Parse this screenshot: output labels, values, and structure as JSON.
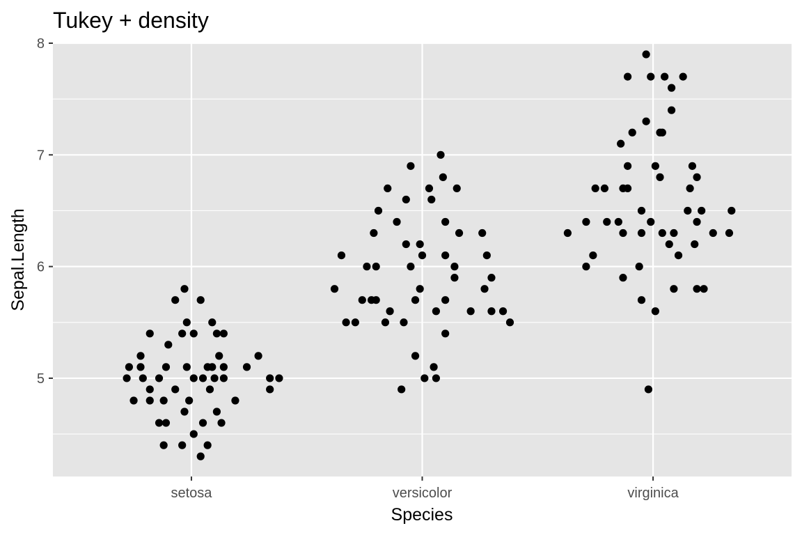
{
  "chart_data": {
    "type": "scatter",
    "title": "Tukey + density",
    "xlabel": "Species",
    "ylabel": "Sepal.Length",
    "categories": [
      "setosa",
      "versicolor",
      "virginica"
    ],
    "ylim": [
      4.12,
      8.0
    ],
    "y_ticks": [
      5,
      6,
      7,
      8
    ],
    "y_tick_labels": [
      "5",
      "6",
      "7",
      "8"
    ],
    "grid": true,
    "colors": {
      "panel": "#e5e5e5",
      "grid": "#ffffff",
      "point": "#000000",
      "tick_label": "#4d4d4d",
      "tick": "#333333"
    },
    "points": [
      {
        "species": "setosa",
        "jitter": -0.28,
        "y": 5.0
      },
      {
        "species": "setosa",
        "jitter": -0.27,
        "y": 5.1
      },
      {
        "species": "setosa",
        "jitter": -0.25,
        "y": 4.8
      },
      {
        "species": "setosa",
        "jitter": -0.22,
        "y": 5.2
      },
      {
        "species": "setosa",
        "jitter": -0.22,
        "y": 5.1
      },
      {
        "species": "setosa",
        "jitter": -0.21,
        "y": 5.0
      },
      {
        "species": "setosa",
        "jitter": -0.18,
        "y": 4.9
      },
      {
        "species": "setosa",
        "jitter": -0.18,
        "y": 4.8
      },
      {
        "species": "setosa",
        "jitter": -0.18,
        "y": 5.4
      },
      {
        "species": "setosa",
        "jitter": -0.14,
        "y": 4.6
      },
      {
        "species": "setosa",
        "jitter": -0.14,
        "y": 5.0
      },
      {
        "species": "setosa",
        "jitter": -0.12,
        "y": 4.8
      },
      {
        "species": "setosa",
        "jitter": -0.12,
        "y": 4.4
      },
      {
        "species": "setosa",
        "jitter": -0.11,
        "y": 4.6
      },
      {
        "species": "setosa",
        "jitter": -0.11,
        "y": 5.1
      },
      {
        "species": "setosa",
        "jitter": -0.1,
        "y": 5.3
      },
      {
        "species": "setosa",
        "jitter": -0.07,
        "y": 4.9
      },
      {
        "species": "setosa",
        "jitter": -0.07,
        "y": 5.7
      },
      {
        "species": "setosa",
        "jitter": -0.04,
        "y": 5.4
      },
      {
        "species": "setosa",
        "jitter": -0.04,
        "y": 4.4
      },
      {
        "species": "setosa",
        "jitter": -0.03,
        "y": 5.8
      },
      {
        "species": "setosa",
        "jitter": -0.03,
        "y": 4.7
      },
      {
        "species": "setosa",
        "jitter": -0.02,
        "y": 5.5
      },
      {
        "species": "setosa",
        "jitter": -0.02,
        "y": 5.1
      },
      {
        "species": "setosa",
        "jitter": -0.01,
        "y": 4.8
      },
      {
        "species": "setosa",
        "jitter": 0.01,
        "y": 4.5
      },
      {
        "species": "setosa",
        "jitter": 0.01,
        "y": 5.0
      },
      {
        "species": "setosa",
        "jitter": 0.01,
        "y": 5.4
      },
      {
        "species": "setosa",
        "jitter": 0.04,
        "y": 4.3
      },
      {
        "species": "setosa",
        "jitter": 0.04,
        "y": 5.7
      },
      {
        "species": "setosa",
        "jitter": 0.05,
        "y": 4.6
      },
      {
        "species": "setosa",
        "jitter": 0.05,
        "y": 5.0
      },
      {
        "species": "setosa",
        "jitter": 0.07,
        "y": 4.4
      },
      {
        "species": "setosa",
        "jitter": 0.07,
        "y": 5.1
      },
      {
        "species": "setosa",
        "jitter": 0.08,
        "y": 4.9
      },
      {
        "species": "setosa",
        "jitter": 0.09,
        "y": 5.5
      },
      {
        "species": "setosa",
        "jitter": 0.09,
        "y": 5.1
      },
      {
        "species": "setosa",
        "jitter": 0.1,
        "y": 5.0
      },
      {
        "species": "setosa",
        "jitter": 0.11,
        "y": 5.4
      },
      {
        "species": "setosa",
        "jitter": 0.11,
        "y": 4.7
      },
      {
        "species": "setosa",
        "jitter": 0.12,
        "y": 5.2
      },
      {
        "species": "setosa",
        "jitter": 0.13,
        "y": 4.6
      },
      {
        "species": "setosa",
        "jitter": 0.14,
        "y": 5.4
      },
      {
        "species": "setosa",
        "jitter": 0.14,
        "y": 5.1
      },
      {
        "species": "setosa",
        "jitter": 0.14,
        "y": 5.0
      },
      {
        "species": "setosa",
        "jitter": 0.19,
        "y": 4.8
      },
      {
        "species": "setosa",
        "jitter": 0.24,
        "y": 5.1
      },
      {
        "species": "setosa",
        "jitter": 0.29,
        "y": 5.2
      },
      {
        "species": "setosa",
        "jitter": 0.34,
        "y": 5.0
      },
      {
        "species": "setosa",
        "jitter": 0.34,
        "y": 4.9
      },
      {
        "species": "setosa",
        "jitter": 0.38,
        "y": 5.0
      },
      {
        "species": "versicolor",
        "jitter": -0.38,
        "y": 5.8
      },
      {
        "species": "versicolor",
        "jitter": -0.35,
        "y": 6.1
      },
      {
        "species": "versicolor",
        "jitter": -0.33,
        "y": 5.5
      },
      {
        "species": "versicolor",
        "jitter": -0.29,
        "y": 5.5
      },
      {
        "species": "versicolor",
        "jitter": -0.26,
        "y": 5.7
      },
      {
        "species": "versicolor",
        "jitter": -0.24,
        "y": 6.0
      },
      {
        "species": "versicolor",
        "jitter": -0.22,
        "y": 5.7
      },
      {
        "species": "versicolor",
        "jitter": -0.21,
        "y": 6.3
      },
      {
        "species": "versicolor",
        "jitter": -0.2,
        "y": 6.0
      },
      {
        "species": "versicolor",
        "jitter": -0.2,
        "y": 5.7
      },
      {
        "species": "versicolor",
        "jitter": -0.19,
        "y": 6.5
      },
      {
        "species": "versicolor",
        "jitter": -0.16,
        "y": 5.5
      },
      {
        "species": "versicolor",
        "jitter": -0.15,
        "y": 6.7
      },
      {
        "species": "versicolor",
        "jitter": -0.14,
        "y": 5.6
      },
      {
        "species": "versicolor",
        "jitter": -0.11,
        "y": 6.4
      },
      {
        "species": "versicolor",
        "jitter": -0.09,
        "y": 4.9
      },
      {
        "species": "versicolor",
        "jitter": -0.08,
        "y": 5.5
      },
      {
        "species": "versicolor",
        "jitter": -0.07,
        "y": 6.2
      },
      {
        "species": "versicolor",
        "jitter": -0.07,
        "y": 6.6
      },
      {
        "species": "versicolor",
        "jitter": -0.05,
        "y": 6.9
      },
      {
        "species": "versicolor",
        "jitter": -0.05,
        "y": 6.0
      },
      {
        "species": "versicolor",
        "jitter": -0.03,
        "y": 5.2
      },
      {
        "species": "versicolor",
        "jitter": -0.03,
        "y": 5.7
      },
      {
        "species": "versicolor",
        "jitter": -0.01,
        "y": 6.2
      },
      {
        "species": "versicolor",
        "jitter": -0.01,
        "y": 5.8
      },
      {
        "species": "versicolor",
        "jitter": 0.0,
        "y": 6.1
      },
      {
        "species": "versicolor",
        "jitter": 0.01,
        "y": 5.0
      },
      {
        "species": "versicolor",
        "jitter": 0.03,
        "y": 6.7
      },
      {
        "species": "versicolor",
        "jitter": 0.04,
        "y": 6.6
      },
      {
        "species": "versicolor",
        "jitter": 0.05,
        "y": 5.1
      },
      {
        "species": "versicolor",
        "jitter": 0.06,
        "y": 5.6
      },
      {
        "species": "versicolor",
        "jitter": 0.06,
        "y": 5.0
      },
      {
        "species": "versicolor",
        "jitter": 0.08,
        "y": 7.0
      },
      {
        "species": "versicolor",
        "jitter": 0.09,
        "y": 6.8
      },
      {
        "species": "versicolor",
        "jitter": 0.1,
        "y": 6.4
      },
      {
        "species": "versicolor",
        "jitter": 0.1,
        "y": 5.7
      },
      {
        "species": "versicolor",
        "jitter": 0.1,
        "y": 5.4
      },
      {
        "species": "versicolor",
        "jitter": 0.1,
        "y": 6.1
      },
      {
        "species": "versicolor",
        "jitter": 0.14,
        "y": 6.0
      },
      {
        "species": "versicolor",
        "jitter": 0.14,
        "y": 5.9
      },
      {
        "species": "versicolor",
        "jitter": 0.15,
        "y": 6.7
      },
      {
        "species": "versicolor",
        "jitter": 0.16,
        "y": 6.3
      },
      {
        "species": "versicolor",
        "jitter": 0.21,
        "y": 5.6
      },
      {
        "species": "versicolor",
        "jitter": 0.26,
        "y": 6.3
      },
      {
        "species": "versicolor",
        "jitter": 0.27,
        "y": 5.8
      },
      {
        "species": "versicolor",
        "jitter": 0.28,
        "y": 6.1
      },
      {
        "species": "versicolor",
        "jitter": 0.3,
        "y": 5.9
      },
      {
        "species": "versicolor",
        "jitter": 0.3,
        "y": 5.6
      },
      {
        "species": "versicolor",
        "jitter": 0.35,
        "y": 5.6
      },
      {
        "species": "versicolor",
        "jitter": 0.38,
        "y": 5.5
      },
      {
        "species": "virginica",
        "jitter": -0.37,
        "y": 6.3
      },
      {
        "species": "virginica",
        "jitter": -0.29,
        "y": 6.0
      },
      {
        "species": "virginica",
        "jitter": -0.29,
        "y": 6.4
      },
      {
        "species": "virginica",
        "jitter": -0.26,
        "y": 6.1
      },
      {
        "species": "virginica",
        "jitter": -0.25,
        "y": 6.7
      },
      {
        "species": "virginica",
        "jitter": -0.21,
        "y": 6.7
      },
      {
        "species": "virginica",
        "jitter": -0.2,
        "y": 6.4
      },
      {
        "species": "virginica",
        "jitter": -0.15,
        "y": 6.4
      },
      {
        "species": "virginica",
        "jitter": -0.14,
        "y": 7.1
      },
      {
        "species": "virginica",
        "jitter": -0.13,
        "y": 6.7
      },
      {
        "species": "virginica",
        "jitter": -0.13,
        "y": 6.3
      },
      {
        "species": "virginica",
        "jitter": -0.13,
        "y": 5.9
      },
      {
        "species": "virginica",
        "jitter": -0.11,
        "y": 6.7
      },
      {
        "species": "virginica",
        "jitter": -0.11,
        "y": 6.9
      },
      {
        "species": "virginica",
        "jitter": -0.11,
        "y": 7.7
      },
      {
        "species": "virginica",
        "jitter": -0.09,
        "y": 7.2
      },
      {
        "species": "virginica",
        "jitter": -0.06,
        "y": 6.0
      },
      {
        "species": "virginica",
        "jitter": -0.05,
        "y": 5.7
      },
      {
        "species": "virginica",
        "jitter": -0.05,
        "y": 6.5
      },
      {
        "species": "virginica",
        "jitter": -0.05,
        "y": 6.3
      },
      {
        "species": "virginica",
        "jitter": -0.03,
        "y": 7.9
      },
      {
        "species": "virginica",
        "jitter": -0.03,
        "y": 7.3
      },
      {
        "species": "virginica",
        "jitter": -0.02,
        "y": 4.9
      },
      {
        "species": "virginica",
        "jitter": -0.01,
        "y": 6.4
      },
      {
        "species": "virginica",
        "jitter": -0.01,
        "y": 7.7
      },
      {
        "species": "virginica",
        "jitter": 0.01,
        "y": 6.9
      },
      {
        "species": "virginica",
        "jitter": 0.01,
        "y": 5.6
      },
      {
        "species": "virginica",
        "jitter": 0.03,
        "y": 7.2
      },
      {
        "species": "virginica",
        "jitter": 0.03,
        "y": 6.8
      },
      {
        "species": "virginica",
        "jitter": 0.04,
        "y": 7.2
      },
      {
        "species": "virginica",
        "jitter": 0.04,
        "y": 6.3
      },
      {
        "species": "virginica",
        "jitter": 0.05,
        "y": 7.7
      },
      {
        "species": "virginica",
        "jitter": 0.07,
        "y": 6.2
      },
      {
        "species": "virginica",
        "jitter": 0.08,
        "y": 7.6
      },
      {
        "species": "virginica",
        "jitter": 0.08,
        "y": 7.4
      },
      {
        "species": "virginica",
        "jitter": 0.09,
        "y": 6.3
      },
      {
        "species": "virginica",
        "jitter": 0.09,
        "y": 5.8
      },
      {
        "species": "virginica",
        "jitter": 0.11,
        "y": 6.1
      },
      {
        "species": "virginica",
        "jitter": 0.13,
        "y": 7.7
      },
      {
        "species": "virginica",
        "jitter": 0.15,
        "y": 6.5
      },
      {
        "species": "virginica",
        "jitter": 0.16,
        "y": 6.7
      },
      {
        "species": "virginica",
        "jitter": 0.17,
        "y": 6.9
      },
      {
        "species": "virginica",
        "jitter": 0.18,
        "y": 6.2
      },
      {
        "species": "virginica",
        "jitter": 0.19,
        "y": 5.8
      },
      {
        "species": "virginica",
        "jitter": 0.19,
        "y": 6.8
      },
      {
        "species": "virginica",
        "jitter": 0.19,
        "y": 6.4
      },
      {
        "species": "virginica",
        "jitter": 0.21,
        "y": 6.5
      },
      {
        "species": "virginica",
        "jitter": 0.22,
        "y": 5.8
      },
      {
        "species": "virginica",
        "jitter": 0.26,
        "y": 6.3
      },
      {
        "species": "virginica",
        "jitter": 0.33,
        "y": 6.3
      },
      {
        "species": "virginica",
        "jitter": 0.34,
        "y": 6.5
      }
    ]
  }
}
